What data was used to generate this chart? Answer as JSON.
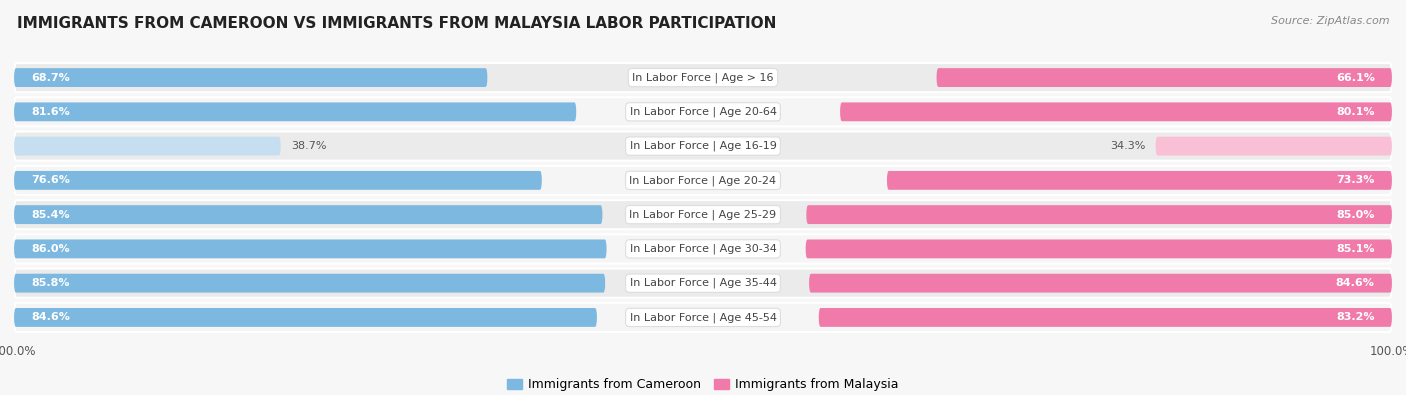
{
  "title": "IMMIGRANTS FROM CAMEROON VS IMMIGRANTS FROM MALAYSIA LABOR PARTICIPATION",
  "source": "Source: ZipAtlas.com",
  "categories": [
    "In Labor Force | Age > 16",
    "In Labor Force | Age 20-64",
    "In Labor Force | Age 16-19",
    "In Labor Force | Age 20-24",
    "In Labor Force | Age 25-29",
    "In Labor Force | Age 30-34",
    "In Labor Force | Age 35-44",
    "In Labor Force | Age 45-54"
  ],
  "cameroon_values": [
    68.7,
    81.6,
    38.7,
    76.6,
    85.4,
    86.0,
    85.8,
    84.6
  ],
  "malaysia_values": [
    66.1,
    80.1,
    34.3,
    73.3,
    85.0,
    85.1,
    84.6,
    83.2
  ],
  "cameroon_color": "#7cb8df",
  "cameroon_color_light": "#c5dff0",
  "malaysia_color": "#f07aaa",
  "malaysia_color_light": "#f9c0d5",
  "background_color": "#f7f7f7",
  "row_bg_even": "#ebebeb",
  "row_bg_odd": "#f5f5f5",
  "max_value": 100.0,
  "legend_cameroon": "Immigrants from Cameroon",
  "legend_malaysia": "Immigrants from Malaysia",
  "title_fontsize": 11,
  "source_fontsize": 8,
  "label_fontsize": 8,
  "cat_fontsize": 8
}
